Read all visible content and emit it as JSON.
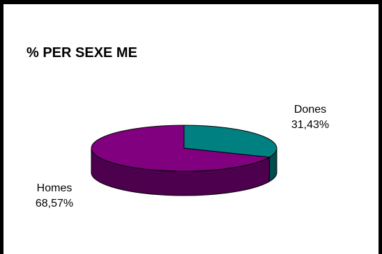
{
  "chart_data": {
    "type": "pie",
    "title": "% PER SEXE ME",
    "slices": [
      {
        "label": "Dones",
        "value": 31.43,
        "value_text": "31,43%",
        "color": "#008080",
        "side_color": "#004c4c"
      },
      {
        "label": "Homes",
        "value": 68.57,
        "value_text": "68,57%",
        "color": "#800080",
        "side_color": "#4d004d"
      }
    ],
    "three_d": true,
    "legend": "none"
  }
}
